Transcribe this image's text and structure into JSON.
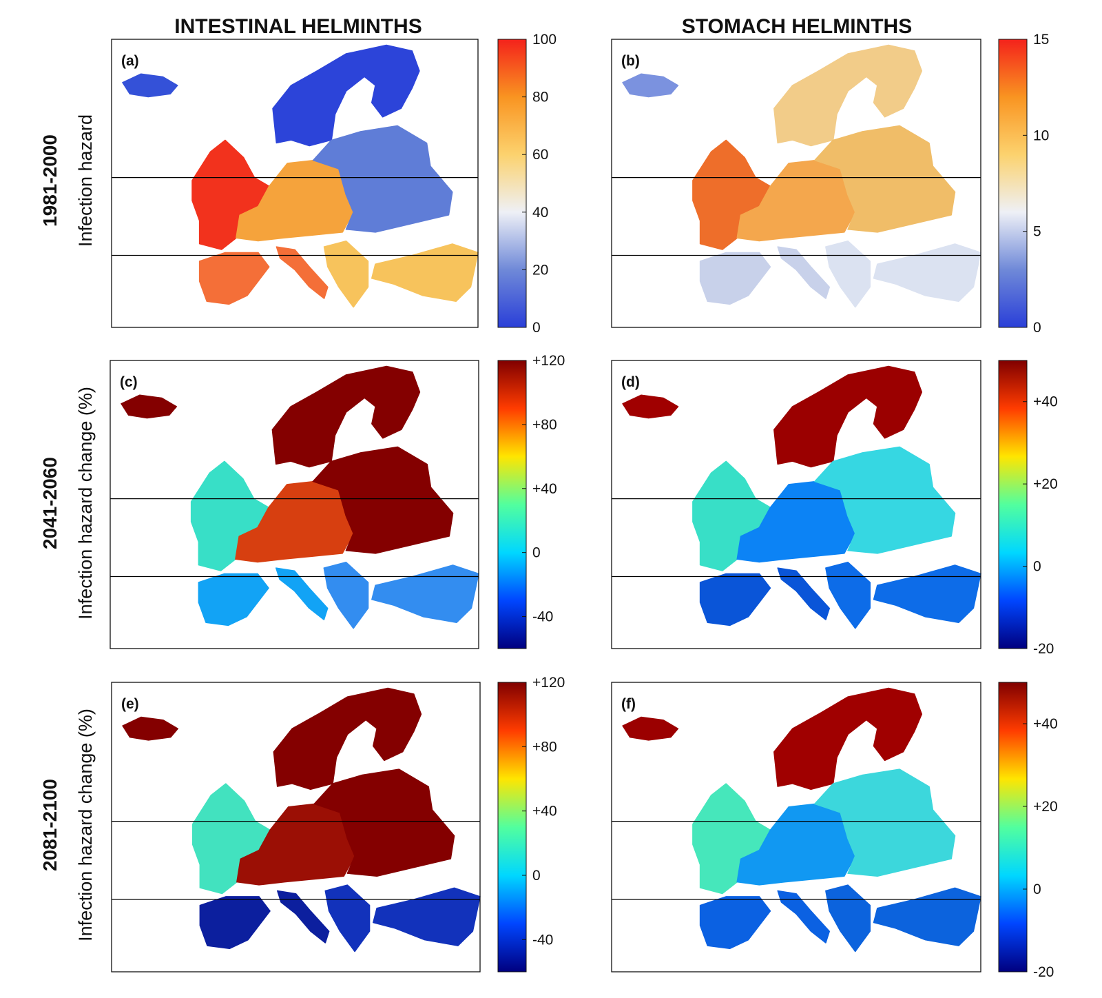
{
  "figure": {
    "column_titles": [
      "INTESTINAL HELMINTHS",
      "STOMACH HELMINTHS"
    ],
    "row_labels": [
      {
        "period": "1981-2000",
        "metric": "Infection hazard"
      },
      {
        "period": "2041-2060",
        "metric": "Infection hazard change (%)"
      },
      {
        "period": "2081-2100",
        "metric": "Infection hazard change (%)"
      }
    ]
  },
  "chart_data": [
    {
      "type": "heatmap",
      "panel": "(a)",
      "colorbar": {
        "ticks": [
          "0",
          "20",
          "40",
          "60",
          "80",
          "100"
        ],
        "tick_values": [
          0,
          20,
          40,
          60,
          80,
          100
        ],
        "range": [
          0,
          100
        ],
        "colors": [
          "#2a3fd8",
          "#6f89d8",
          "#eef0f6",
          "#fcd26e",
          "#f99421",
          "#f4221b"
        ]
      },
      "pattern": {
        "north": "#2c44d9",
        "northwest": "#f2321d",
        "central": "#f5a33c",
        "east": "#5f7dd7",
        "south": "#f46f38",
        "southeast": "#f7c35c",
        "iceland": "#3451d8"
      }
    },
    {
      "type": "heatmap",
      "panel": "(b)",
      "colorbar": {
        "ticks": [
          "0",
          "5",
          "10",
          "15"
        ],
        "tick_values": [
          0,
          5,
          10,
          15
        ],
        "range": [
          0,
          15
        ],
        "colors": [
          "#2a3fd8",
          "#6f89d8",
          "#eef0f6",
          "#fcd26e",
          "#f99421",
          "#f4221b"
        ]
      },
      "pattern": {
        "north": "#f2cc89",
        "northwest": "#ee6e2a",
        "central": "#f4a74d",
        "east": "#f0bd68",
        "south": "#c8d1ea",
        "southeast": "#dbe2f1",
        "iceland": "#7b92df"
      }
    },
    {
      "type": "heatmap",
      "panel": "(c)",
      "colorbar": {
        "ticks": [
          "-40",
          "0",
          "+40",
          "+80",
          "+120"
        ],
        "tick_values": [
          -40,
          0,
          40,
          80,
          120
        ],
        "range": [
          -60,
          120
        ],
        "colors": [
          "#00007f",
          "#0046ff",
          "#00d7ff",
          "#52ff9e",
          "#ffe500",
          "#ff3c00",
          "#800000"
        ]
      },
      "pattern": {
        "north": "#840000",
        "northwest": "#38dfc7",
        "central": "#d73f10",
        "east": "#840000",
        "south": "#12a3f5",
        "southeast": "#338df0",
        "iceland": "#840000"
      }
    },
    {
      "type": "heatmap",
      "panel": "(d)",
      "colorbar": {
        "ticks": [
          "-20",
          "0",
          "+20",
          "+40"
        ],
        "tick_values": [
          -20,
          0,
          20,
          40
        ],
        "range": [
          -20,
          50
        ],
        "colors": [
          "#00007f",
          "#0046ff",
          "#00d7ff",
          "#52ff9e",
          "#ffe500",
          "#ff3c00",
          "#800000"
        ]
      },
      "pattern": {
        "north": "#9b0000",
        "northwest": "#38dfc7",
        "central": "#0c83f5",
        "east": "#36d7e2",
        "south": "#0a55d8",
        "southeast": "#0d6ce8",
        "iceland": "#a00000"
      }
    },
    {
      "type": "heatmap",
      "panel": "(e)",
      "colorbar": {
        "ticks": [
          "-40",
          "0",
          "+40",
          "+80",
          "+120"
        ],
        "tick_values": [
          -40,
          0,
          40,
          80,
          120
        ],
        "range": [
          -60,
          120
        ],
        "colors": [
          "#00007f",
          "#0046ff",
          "#00d7ff",
          "#52ff9e",
          "#ffe500",
          "#ff3c00",
          "#800000"
        ]
      },
      "pattern": {
        "north": "#840000",
        "northwest": "#42e2bf",
        "central": "#9b0f05",
        "east": "#840000",
        "south": "#0c1f9e",
        "southeast": "#1232bb",
        "iceland": "#840000"
      }
    },
    {
      "type": "heatmap",
      "panel": "(f)",
      "colorbar": {
        "ticks": [
          "-20",
          "0",
          "+20",
          "+40"
        ],
        "tick_values": [
          -20,
          0,
          20,
          40
        ],
        "range": [
          -20,
          50
        ],
        "colors": [
          "#00007f",
          "#0046ff",
          "#00d7ff",
          "#52ff9e",
          "#ffe500",
          "#ff3c00",
          "#800000"
        ]
      },
      "pattern": {
        "north": "#a00000",
        "northwest": "#46e7bb",
        "central": "#1198f2",
        "east": "#3cd7dc",
        "south": "#0b61e2",
        "southeast": "#0c63dd",
        "iceland": "#9b0000"
      }
    }
  ]
}
